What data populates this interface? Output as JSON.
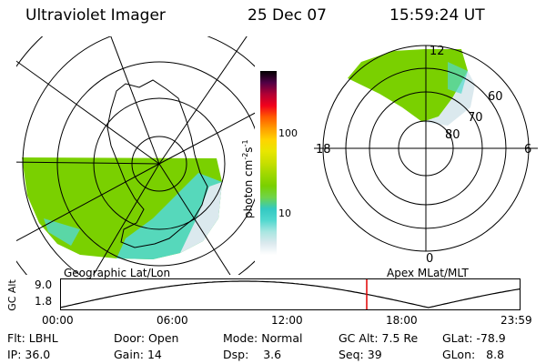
{
  "header": {
    "instrument": "Ultraviolet Imager",
    "date": "25 Dec 07",
    "time": "15:59:24 UT"
  },
  "left_panel": {
    "caption": "Geographic Lat/Lon"
  },
  "right_panel": {
    "caption": "Apex MLat/MLT",
    "mlt_labels": {
      "top": "12",
      "left": "18",
      "right": "6",
      "bottom": "0"
    },
    "lat_labels": [
      "60",
      "70",
      "80"
    ]
  },
  "colorbar": {
    "label": "photon cm",
    "label_exp1": "-2",
    "label_mid": "s",
    "label_exp2": "-1",
    "ticks": [
      "100",
      "10"
    ],
    "colors": [
      "#ffffff",
      "#dbe9ee",
      "#a9e6e1",
      "#52d8cf",
      "#33c9c2",
      "#6fd44a",
      "#7ad000",
      "#9ed800",
      "#c8df00",
      "#e8e600",
      "#ffd400",
      "#ff9d00",
      "#ff5a00",
      "#f1001c",
      "#b00035",
      "#500045",
      "#000000"
    ]
  },
  "timeline": {
    "axis_title": "GC Alt",
    "yticks": [
      "9.0",
      "1.8"
    ],
    "xticks": [
      "00:00",
      "06:00",
      "12:00",
      "18:00",
      "23:59"
    ],
    "marker_time": "15:59"
  },
  "info": {
    "flt_label": "Flt:",
    "flt_value": "LBHL",
    "ip_label": "IP:",
    "ip_value": "36.0",
    "door_label": "Door:",
    "door_value": "Open",
    "gain_label": "Gain:",
    "gain_value": "14",
    "mode_label": "Mode:",
    "mode_value": "Normal",
    "dsp_label": "Dsp:",
    "dsp_value": "3.6",
    "gcalt_label": "GC Alt:",
    "gcalt_value": "7.5 Re",
    "seq_label": "Seq:",
    "seq_value": "39",
    "glat_label": "GLat:",
    "glat_value": "-78.9",
    "glon_label": "GLon:",
    "glon_value": "8.8"
  },
  "colors": {
    "marker": "#e00000",
    "aurora_green": "#7ad000",
    "aurora_cyan": "#52d8cf",
    "aurora_pale": "#dbe9ee"
  }
}
